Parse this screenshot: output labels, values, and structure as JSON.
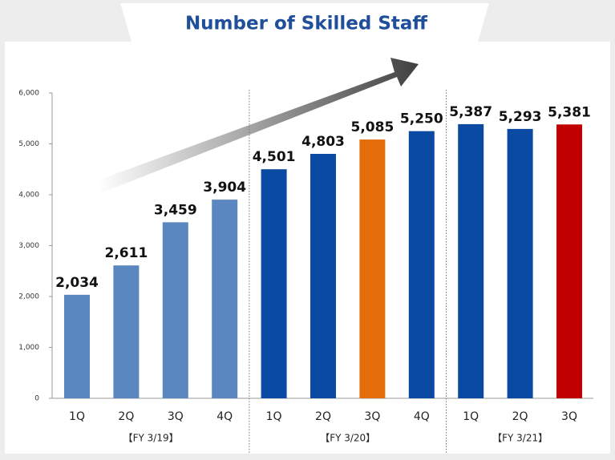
{
  "chart_data": {
    "type": "bar",
    "title": "Number of Skilled Staff",
    "ylim": [
      0,
      6000
    ],
    "yticks": [
      0,
      {
        "value": 1000,
        "label": "1,000"
      },
      {
        "value": 2000,
        "label": "2,000"
      },
      {
        "value": 3000,
        "label": "3,000"
      },
      {
        "value": 4000,
        "label": "4,000"
      },
      {
        "value": 5000,
        "label": "5,000"
      },
      {
        "value": 6000,
        "label": "6,000"
      }
    ],
    "groups": [
      {
        "name": "【FY 3/19】",
        "categories": [
          "1Q",
          "2Q",
          "3Q",
          "4Q"
        ],
        "values": [
          2034,
          2611,
          3459,
          3904
        ],
        "value_labels": [
          "2,034",
          "2,611",
          "3,459",
          "3,904"
        ],
        "colors": [
          "#5b87c0",
          "#5b87c0",
          "#5b87c0",
          "#5b87c0"
        ]
      },
      {
        "name": "【FY 3/20】",
        "categories": [
          "1Q",
          "2Q",
          "3Q",
          "4Q"
        ],
        "values": [
          4501,
          4803,
          5085,
          5250
        ],
        "value_labels": [
          "4,501",
          "4,803",
          "5,085",
          "5,250"
        ],
        "colors": [
          "#0b4aa2",
          "#0b4aa2",
          "#e46c0a",
          "#0b4aa2"
        ]
      },
      {
        "name": "【FY 3/21】",
        "categories": [
          "1Q",
          "2Q",
          "3Q"
        ],
        "values": [
          5387,
          5293,
          5381
        ],
        "value_labels": [
          "5,387",
          "5,293",
          "5,381"
        ],
        "colors": [
          "#0b4aa2",
          "#0b4aa2",
          "#c00000"
        ]
      }
    ]
  }
}
